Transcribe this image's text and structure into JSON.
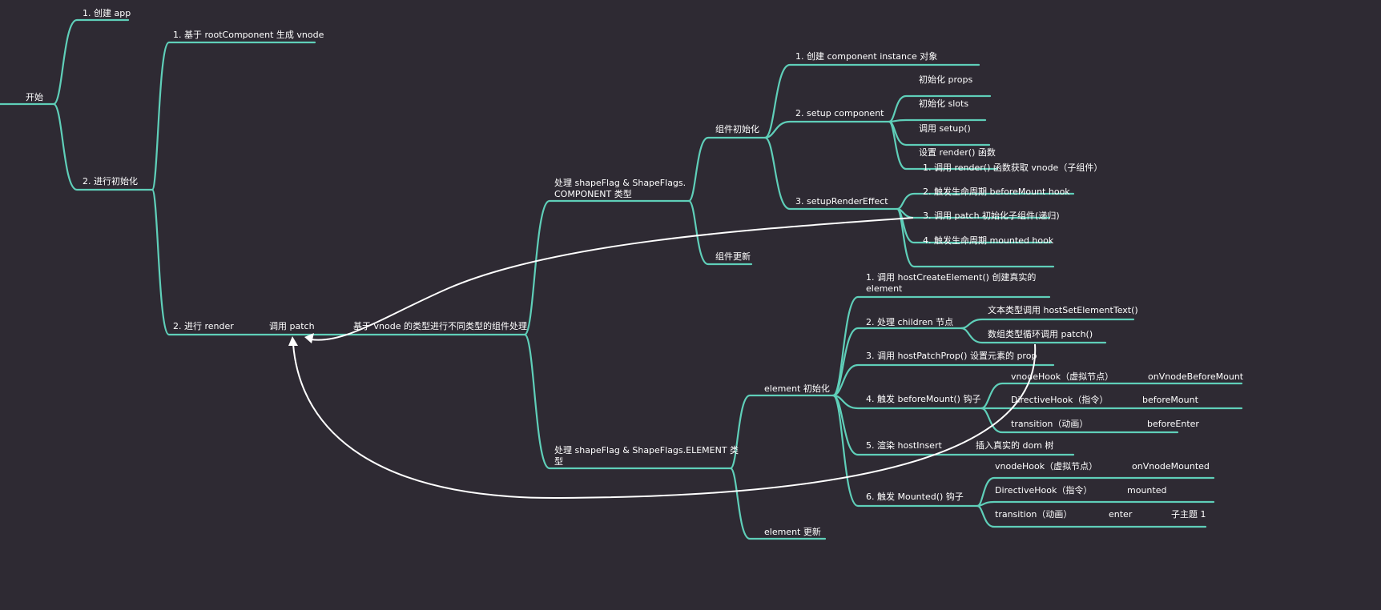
{
  "colors": {
    "background": "#2e2a33",
    "branch": "#5fcfb9",
    "relation_arrow": "#ffffff",
    "text": "#ffffff"
  },
  "root": "开始",
  "create_app": "1. 创建 app",
  "init": "2. 进行初始化",
  "gen_vnode": "1. 基于 rootComponent 生成 vnode",
  "render": "2. 进行 render",
  "call_patch": "调用 patch",
  "by_type": "基于 vnode 的类型进行不同类型的组件处理",
  "component_type": [
    "处理 shapeFlag & ShapeFlags.",
    "COMPONENT 类型"
  ],
  "element_type": [
    "处理 shapeFlag & ShapeFlags.ELEMENT 类",
    "型"
  ],
  "component_init": "组件初始化",
  "component_update": "组件更新",
  "component_steps": [
    "1. 创建 component instance 对象",
    "2. setup component",
    "3. setupRenderEffect"
  ],
  "setup_steps": [
    "初始化 props",
    "初始化 slots",
    "调用 setup()",
    "设置 render() 函数"
  ],
  "render_effect_steps": [
    "1. 调用 render() 函数获取 vnode（子组件）",
    "2. 触发生命周期 beforeMount hook",
    "3. 调用 patch 初始化子组件(递归)",
    "4. 触发生命周期 mounted hook"
  ],
  "element_init": "element 初始化",
  "element_update": "element 更新",
  "element_steps": {
    "create": [
      "1. 调用 hostCreateElement() 创建真实的",
      "element"
    ],
    "children": "2. 处理 children 节点",
    "children_text": "文本类型调用  hostSetElementText()",
    "children_array": "数组类型循环调用 patch()",
    "props": "3. 调用 hostPatchProp() 设置元素的 prop",
    "before_mount": "4. 触发 beforeMount() 钩子",
    "before_mount_hooks": [
      [
        "vnodeHook（虚拟节点）",
        "onVnodeBeforeMount"
      ],
      [
        "DirectiveHook（指令）",
        "beforeMount"
      ],
      [
        "transition（动画）",
        "beforeEnter"
      ]
    ],
    "insert": "5. 渲染 hostInsert",
    "insert_note": "插入真实的 dom 树",
    "mounted": "6. 触发 Mounted() 钩子",
    "mounted_hooks": [
      [
        "vnodeHook（虚拟节点）",
        "onVnodeMounted"
      ],
      [
        "DirectiveHook（指令）",
        "mounted"
      ],
      [
        "transition（动画）",
        "enter",
        "子主题 1"
      ]
    ]
  }
}
